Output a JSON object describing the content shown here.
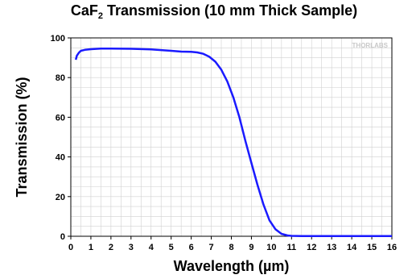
{
  "chart_data": {
    "type": "line",
    "title": {
      "main": "CaF",
      "sub": "2",
      "rest": " Transmission (10 mm Thick Sample)"
    },
    "xlabel": "Wavelength (µm)",
    "ylabel": "Transmission (%)",
    "xlim": [
      0,
      16
    ],
    "ylim": [
      0,
      100
    ],
    "xticks": [
      0,
      1,
      2,
      3,
      4,
      5,
      6,
      7,
      8,
      9,
      10,
      11,
      12,
      13,
      14,
      15,
      16
    ],
    "yticks": [
      0,
      20,
      40,
      60,
      80,
      100
    ],
    "grid": true,
    "legend": "none",
    "watermark": "THORLABS",
    "series": [
      {
        "color": "#1a1aff",
        "x": [
          0.25,
          0.3,
          0.4,
          0.5,
          0.7,
          1.0,
          1.5,
          2.0,
          3.0,
          4.0,
          5.0,
          5.5,
          6.0,
          6.3,
          6.6,
          6.9,
          7.2,
          7.5,
          7.8,
          8.1,
          8.4,
          8.7,
          9.0,
          9.3,
          9.6,
          9.9,
          10.2,
          10.5,
          10.8,
          11.0,
          11.5,
          12.0,
          13.0,
          14.0,
          15.0,
          16.0
        ],
        "y": [
          89,
          91,
          92.5,
          93.5,
          94,
          94.3,
          94.6,
          94.6,
          94.5,
          94.2,
          93.5,
          93.1,
          93.0,
          92.7,
          92.0,
          90.5,
          88.0,
          84.0,
          78.0,
          70.0,
          60.0,
          48.0,
          37.0,
          26.0,
          16.0,
          8.0,
          3.5,
          1.2,
          0.4,
          0.2,
          0.1,
          0.1,
          0.1,
          0.1,
          0.1,
          0.1
        ]
      }
    ]
  }
}
